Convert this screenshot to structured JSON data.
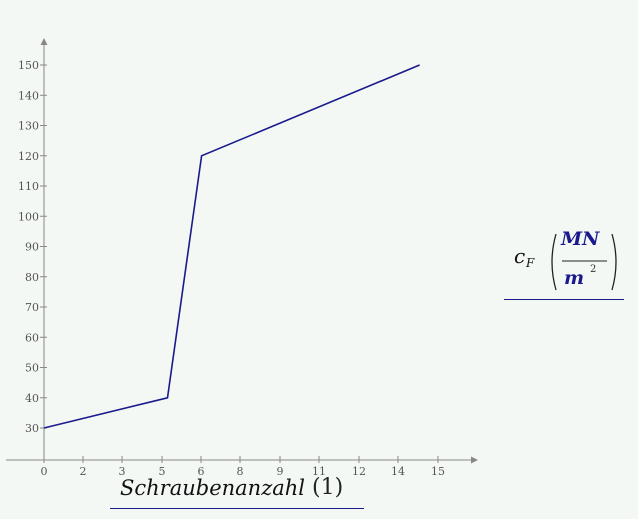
{
  "chart_data": {
    "type": "line",
    "x_ticks": [
      "0",
      "2",
      "3",
      "5",
      "6",
      "8",
      "9",
      "11",
      "12",
      "14",
      "15"
    ],
    "y_ticks": [
      "30",
      "40",
      "50",
      "60",
      "70",
      "80",
      "90",
      "100",
      "110",
      "120",
      "130",
      "140",
      "150"
    ],
    "series": [
      {
        "points": [
          {
            "x": 0,
            "y": 30
          },
          {
            "x": 4.7,
            "y": 40
          },
          {
            "x": 6,
            "y": 120
          },
          {
            "x": 14.3,
            "y": 150
          }
        ],
        "color": "#1a1a8c"
      }
    ],
    "xlim": [
      0,
      15
    ],
    "ylim": [
      30,
      150
    ],
    "xlabel": {
      "text": "Schraubenanzahl",
      "unit": "(1)"
    },
    "ylabel": {
      "symbol": "c",
      "subscript": "F",
      "unit_num": "MN",
      "unit_den": "m",
      "unit_den_exp": "2"
    },
    "grid": false
  },
  "colors": {
    "line": "#1a1a8c",
    "axis": "#888888",
    "label_blue": "#1a1a8c",
    "background": "#f4f8f5"
  }
}
